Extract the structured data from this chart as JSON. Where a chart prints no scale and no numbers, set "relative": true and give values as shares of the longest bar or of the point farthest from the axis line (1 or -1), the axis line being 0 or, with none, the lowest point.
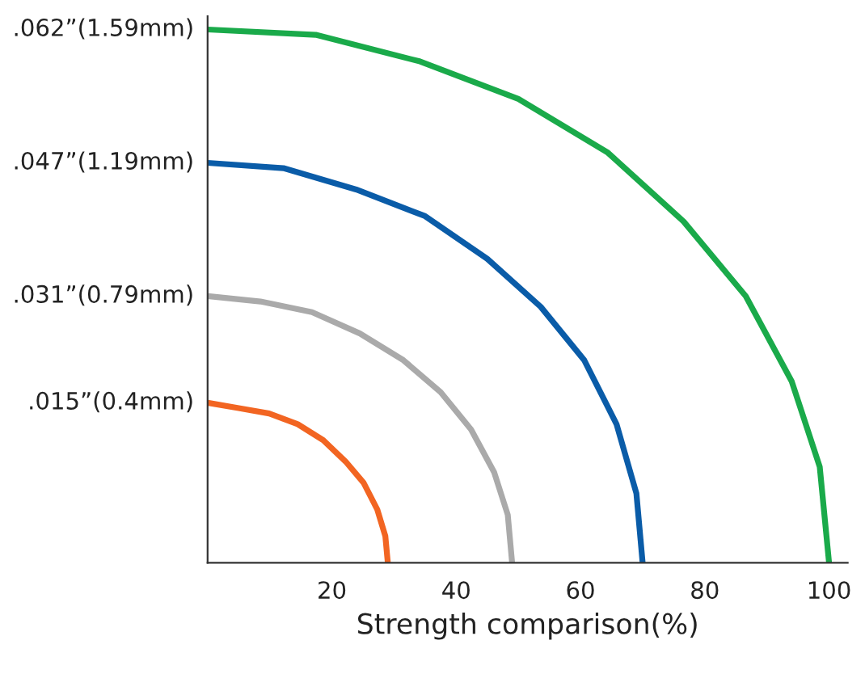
{
  "chart_data": {
    "type": "line",
    "xlabel": "Strength comparison(%)",
    "xlim": [
      0,
      103
    ],
    "xticks": [
      20,
      40,
      60,
      80,
      100
    ],
    "relative": true,
    "grid": false,
    "legend": false,
    "marker": "none",
    "line_style": "solid",
    "annotations": [
      ".015”(0.4mm)",
      ".031”(0.79mm)",
      ".047”(1.19mm)",
      ".062”(1.59mm)"
    ],
    "series": [
      {
        "color": "#f26522",
        "x": [
          29,
          28.6,
          27.3,
          25.1,
          22.2,
          18.6,
          14.5,
          9.9,
          5.0,
          0
        ],
        "values": [
          0,
          0.05,
          0.1,
          0.15,
          0.19,
          0.23,
          0.26,
          0.28,
          0.29,
          0.3
        ]
      },
      {
        "color": "#aaaaaa",
        "x": [
          49,
          48.3,
          46.1,
          42.4,
          37.5,
          31.5,
          24.5,
          16.8,
          8.5,
          0
        ],
        "values": [
          0,
          0.09,
          0.17,
          0.25,
          0.32,
          0.38,
          0.43,
          0.47,
          0.49,
          0.5
        ]
      },
      {
        "color": "#0a5ca8",
        "x": [
          70,
          69,
          65.8,
          60.6,
          53.6,
          45,
          35,
          23.9,
          12.2,
          0
        ],
        "values": [
          0,
          0.13,
          0.26,
          0.38,
          0.48,
          0.57,
          0.65,
          0.7,
          0.74,
          0.75
        ]
      },
      {
        "color": "#1aaa4a",
        "x": [
          100,
          98.5,
          94,
          86.6,
          76.6,
          64.3,
          50,
          34.2,
          17.4,
          0
        ],
        "values": [
          0,
          0.18,
          0.34,
          0.5,
          0.64,
          0.77,
          0.87,
          0.94,
          0.99,
          1.0
        ]
      }
    ]
  }
}
